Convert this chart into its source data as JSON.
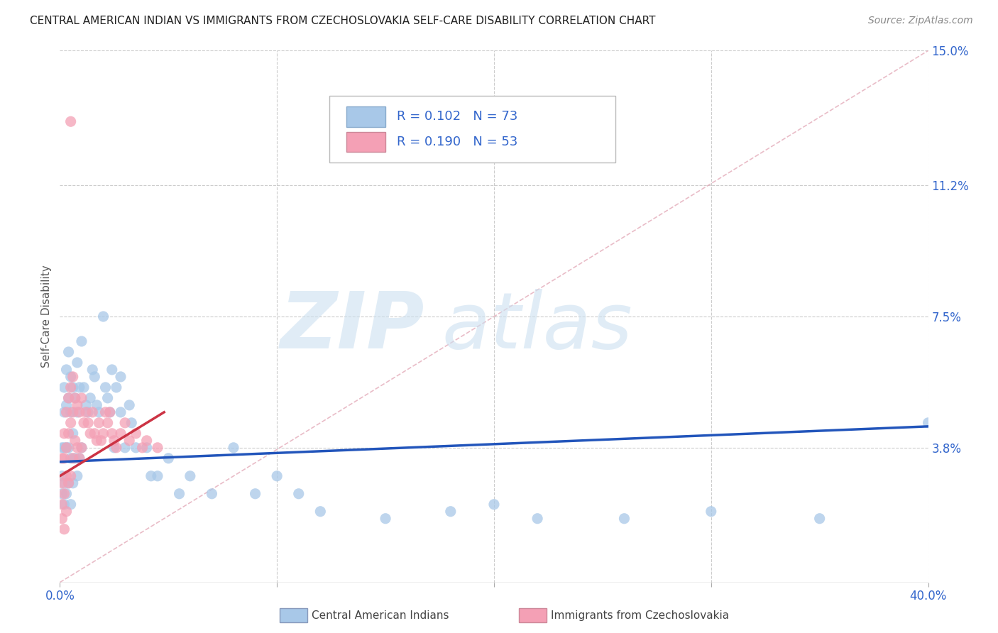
{
  "title": "CENTRAL AMERICAN INDIAN VS IMMIGRANTS FROM CZECHOSLOVAKIA SELF-CARE DISABILITY CORRELATION CHART",
  "source": "Source: ZipAtlas.com",
  "ylabel": "Self-Care Disability",
  "xlim": [
    0.0,
    0.4
  ],
  "ylim": [
    0.0,
    0.15
  ],
  "R1": 0.102,
  "N1": 73,
  "R2": 0.19,
  "N2": 53,
  "color_blue": "#a8c8e8",
  "color_pink": "#f4a0b5",
  "color_line_blue": "#2255bb",
  "color_line_pink": "#cc3344",
  "legend1_label": "Central American Indians",
  "legend2_label": "Immigrants from Czechoslovakia",
  "blue_scatter_x": [
    0.001,
    0.001,
    0.001,
    0.002,
    0.002,
    0.002,
    0.002,
    0.002,
    0.003,
    0.003,
    0.003,
    0.003,
    0.004,
    0.004,
    0.004,
    0.004,
    0.005,
    0.005,
    0.005,
    0.005,
    0.006,
    0.006,
    0.006,
    0.007,
    0.007,
    0.008,
    0.008,
    0.008,
    0.009,
    0.009,
    0.01,
    0.01,
    0.011,
    0.012,
    0.013,
    0.014,
    0.015,
    0.016,
    0.017,
    0.018,
    0.02,
    0.021,
    0.022,
    0.023,
    0.024,
    0.025,
    0.026,
    0.028,
    0.028,
    0.03,
    0.032,
    0.033,
    0.035,
    0.04,
    0.042,
    0.045,
    0.05,
    0.055,
    0.06,
    0.07,
    0.08,
    0.09,
    0.1,
    0.11,
    0.12,
    0.15,
    0.18,
    0.2,
    0.22,
    0.26,
    0.3,
    0.35,
    0.4
  ],
  "blue_scatter_y": [
    0.038,
    0.03,
    0.025,
    0.055,
    0.048,
    0.038,
    0.028,
    0.022,
    0.06,
    0.05,
    0.038,
    0.025,
    0.065,
    0.052,
    0.038,
    0.028,
    0.058,
    0.048,
    0.035,
    0.022,
    0.055,
    0.042,
    0.028,
    0.052,
    0.035,
    0.062,
    0.048,
    0.03,
    0.055,
    0.035,
    0.068,
    0.038,
    0.055,
    0.05,
    0.048,
    0.052,
    0.06,
    0.058,
    0.05,
    0.048,
    0.075,
    0.055,
    0.052,
    0.048,
    0.06,
    0.038,
    0.055,
    0.058,
    0.048,
    0.038,
    0.05,
    0.045,
    0.038,
    0.038,
    0.03,
    0.03,
    0.035,
    0.025,
    0.03,
    0.025,
    0.038,
    0.025,
    0.03,
    0.025,
    0.02,
    0.018,
    0.02,
    0.022,
    0.018,
    0.018,
    0.02,
    0.018,
    0.045
  ],
  "pink_scatter_x": [
    0.001,
    0.001,
    0.001,
    0.001,
    0.002,
    0.002,
    0.002,
    0.002,
    0.003,
    0.003,
    0.003,
    0.003,
    0.004,
    0.004,
    0.004,
    0.005,
    0.005,
    0.005,
    0.006,
    0.006,
    0.006,
    0.007,
    0.007,
    0.008,
    0.008,
    0.009,
    0.009,
    0.01,
    0.01,
    0.011,
    0.012,
    0.013,
    0.014,
    0.015,
    0.016,
    0.017,
    0.018,
    0.019,
    0.02,
    0.021,
    0.022,
    0.023,
    0.024,
    0.025,
    0.026,
    0.028,
    0.03,
    0.032,
    0.035,
    0.038,
    0.04,
    0.045,
    0.005
  ],
  "pink_scatter_y": [
    0.035,
    0.028,
    0.022,
    0.018,
    0.042,
    0.035,
    0.025,
    0.015,
    0.048,
    0.038,
    0.03,
    0.02,
    0.052,
    0.042,
    0.028,
    0.055,
    0.045,
    0.03,
    0.058,
    0.048,
    0.035,
    0.052,
    0.04,
    0.05,
    0.038,
    0.048,
    0.035,
    0.052,
    0.038,
    0.045,
    0.048,
    0.045,
    0.042,
    0.048,
    0.042,
    0.04,
    0.045,
    0.04,
    0.042,
    0.048,
    0.045,
    0.048,
    0.042,
    0.04,
    0.038,
    0.042,
    0.045,
    0.04,
    0.042,
    0.038,
    0.04,
    0.038,
    0.13
  ]
}
